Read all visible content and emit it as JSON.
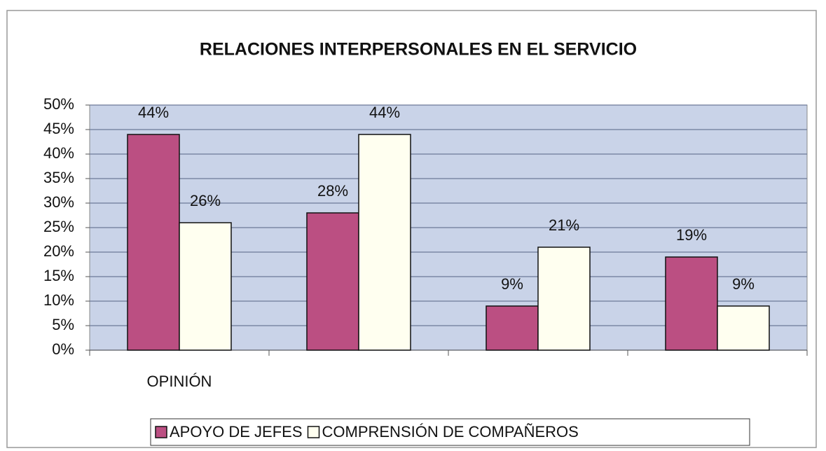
{
  "chart_data": {
    "type": "bar",
    "title": "RELACIONES INTERPERSONALES EN EL SERVICIO",
    "categories": [
      "OPINIÓN",
      null,
      null,
      null
    ],
    "series": [
      {
        "name": "APOYO DE JEFES",
        "color": "#bb4f82",
        "values": [
          44,
          28,
          9,
          19
        ],
        "value_labels": [
          "44%",
          "28%",
          "9%",
          "19%"
        ]
      },
      {
        "name": "COMPRENSIÓN DE COMPAÑEROS",
        "color": "#fffff0",
        "values": [
          26,
          44,
          21,
          9
        ],
        "value_labels": [
          "26%",
          "44%",
          "21%",
          "9%"
        ]
      }
    ],
    "ylim": [
      0,
      50
    ],
    "yticks": [
      {
        "value": 0,
        "label": "0%"
      },
      {
        "value": 5,
        "label": "5%"
      },
      {
        "value": 10,
        "label": "10%"
      },
      {
        "value": 15,
        "label": "15%"
      },
      {
        "value": 20,
        "label": "20%"
      },
      {
        "value": 25,
        "label": "25%"
      },
      {
        "value": 30,
        "label": "30%"
      },
      {
        "value": 35,
        "label": "35%"
      },
      {
        "value": 40,
        "label": "40%"
      },
      {
        "value": 45,
        "label": "45%"
      },
      {
        "value": 50,
        "label": "50%"
      }
    ],
    "grid": true,
    "legend": "bottom"
  }
}
